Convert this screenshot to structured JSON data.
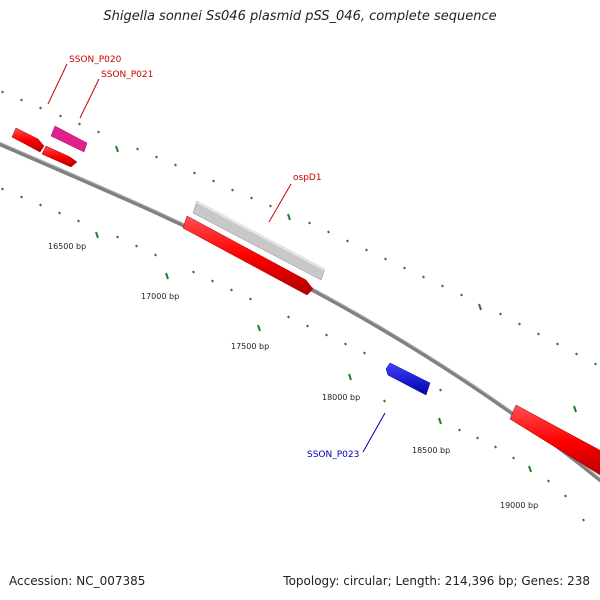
{
  "title": "Shigella sonnei Ss046 plasmid pSS_046, complete sequence",
  "footer": {
    "accession": "Accession: NC_007385",
    "topology": "Topology: circular; Length: 214,396 bp; Genes: 238"
  },
  "colors": {
    "backbone": "#808080",
    "forward_feature": "#ff0000",
    "reverse_feature": "#0000ff",
    "feature_magenta": "#e0208c",
    "feature_grey": "#c8c8c8",
    "tick_marks": "#2a7a2a",
    "forward_label": "#cc0000",
    "reverse_label": "#0000aa"
  },
  "position_labels": [
    "16500 bp",
    "17000 bp",
    "17500 bp",
    "18000 bp",
    "18500 bp",
    "19000 bp"
  ],
  "gene_labels": [
    "SSON_P020",
    "SSON_P021",
    "ospD1",
    "SSON_P023"
  ]
}
